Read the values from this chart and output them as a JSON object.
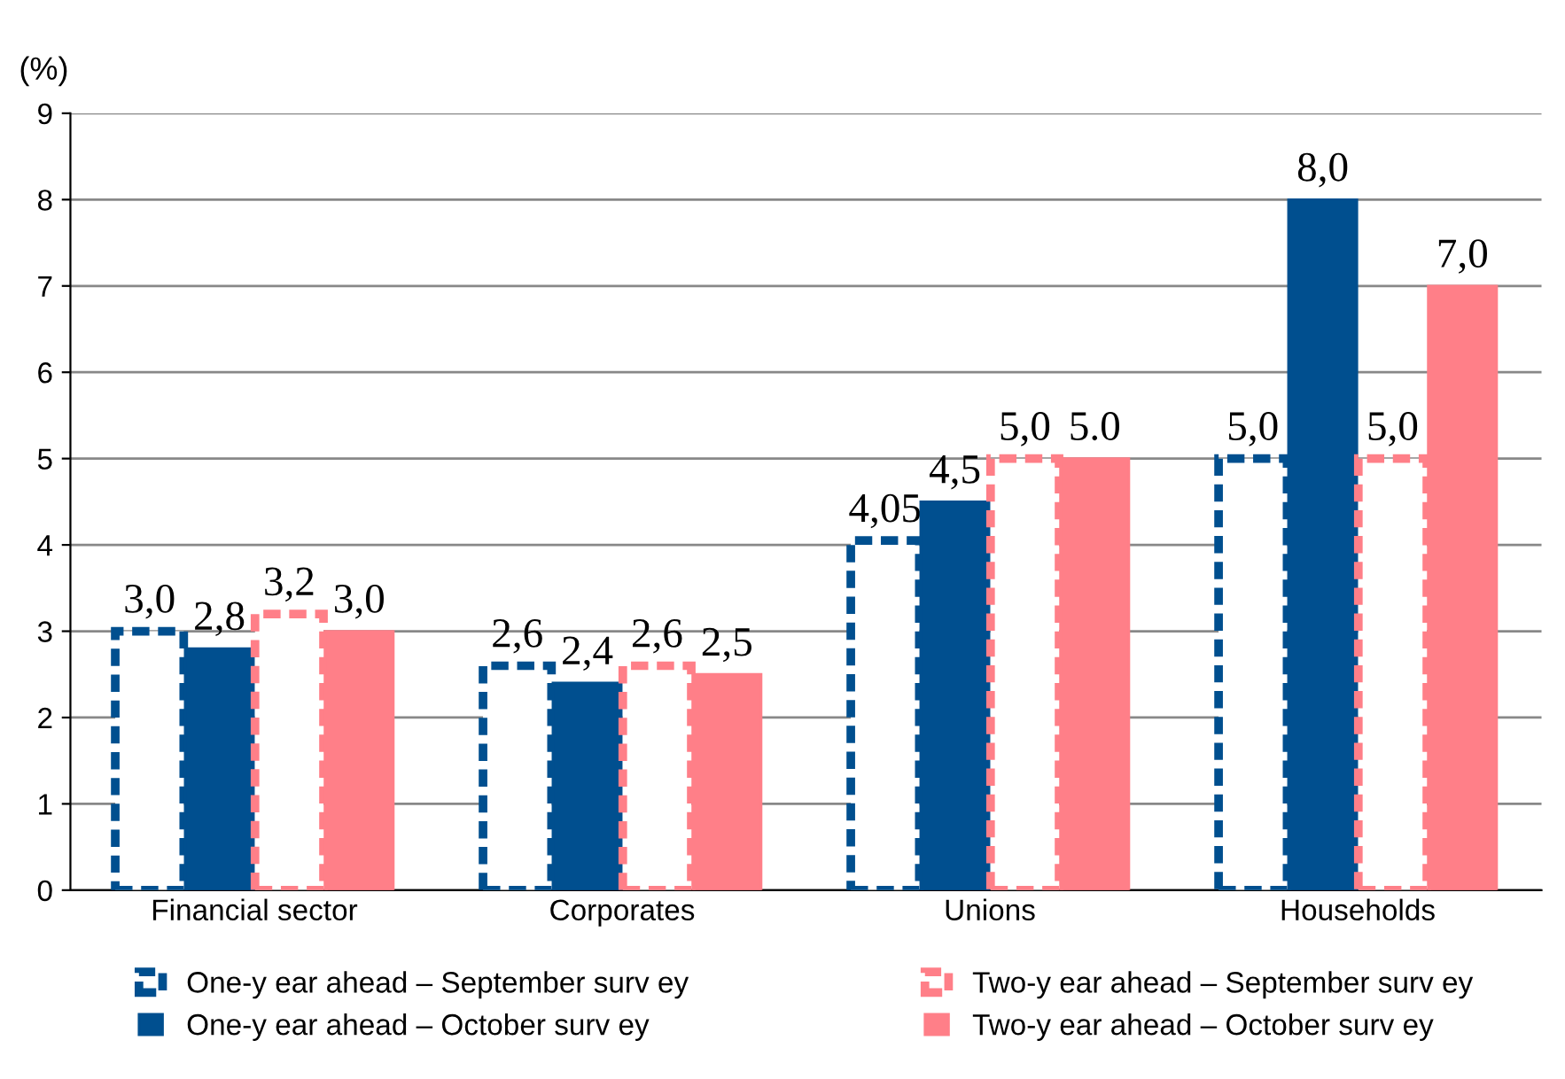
{
  "chart_data": {
    "type": "bar",
    "ylabel": "(%)",
    "categories": [
      "Financial sector",
      "Corporates",
      "Unions",
      "Households"
    ],
    "series": [
      {
        "name": "One-y ear ahead – September surv ey",
        "color": "#004f8f",
        "line_style": "dashed",
        "values": [
          3.0,
          2.6,
          4.05,
          5.0
        ],
        "value_labels": [
          "3,0",
          "2,6",
          "4,05",
          "5,0"
        ]
      },
      {
        "name": "One-y ear ahead – October surv ey",
        "color": "#004f8f",
        "values": [
          2.8,
          2.4,
          4.5,
          8.0
        ],
        "value_labels": [
          "2,8",
          "2,4",
          "4,5",
          "8,0"
        ]
      },
      {
        "name": "Two-y ear ahead – September surv ey",
        "color": "#ff7f88",
        "line_style": "dashed",
        "values": [
          3.2,
          2.6,
          5.0,
          5.0
        ],
        "value_labels": [
          "3,2",
          "2,6",
          "5,0",
          "5,0"
        ]
      },
      {
        "name": "Two-y ear ahead – October surv ey",
        "color": "#ff7f88",
        "values": [
          3.0,
          2.5,
          5.0,
          7.0
        ],
        "value_labels": [
          "3,0",
          "2,5",
          "5.0",
          "7,0"
        ]
      }
    ],
    "ylim": [
      0,
      9
    ],
    "yticks": [
      0,
      1,
      2,
      3,
      4,
      5,
      6,
      7,
      8,
      9
    ],
    "grid": "y",
    "legend": "bottom"
  }
}
